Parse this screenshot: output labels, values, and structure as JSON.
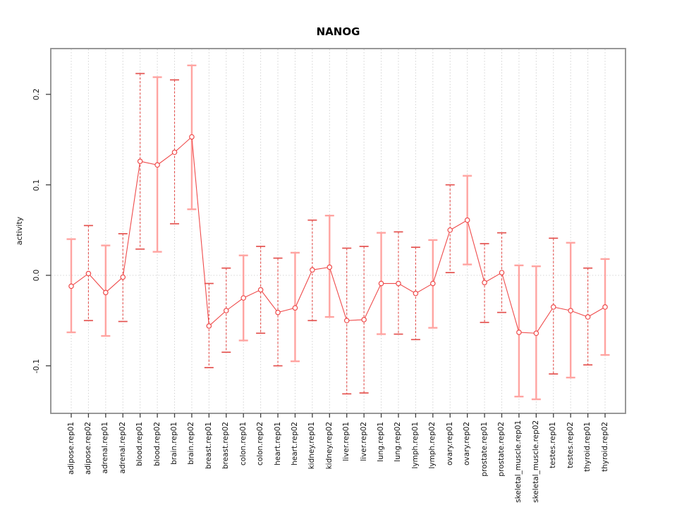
{
  "chart_data": {
    "type": "line",
    "title": "NANOG",
    "xlabel": "",
    "ylabel": "activity",
    "grid": "vertical-dotted-per-category",
    "zero_line": "dotted",
    "legend": "none",
    "ylim": [
      -0.153,
      0.251
    ],
    "yticks": [
      -0.1,
      0.0,
      0.1,
      0.2
    ],
    "ytick_labels": [
      "-0.1",
      "0.0",
      "0.1",
      "0.2"
    ],
    "point_marker": "open-circle",
    "categories": [
      "adipose.rep01",
      "adipose.rep02",
      "adrenal.rep01",
      "adrenal.rep02",
      "blood.rep01",
      "blood.rep02",
      "brain.rep01",
      "brain.rep02",
      "breast.rep01",
      "breast.rep02",
      "colon.rep01",
      "colon.rep02",
      "heart.rep01",
      "heart.rep02",
      "kidney.rep01",
      "kidney.rep02",
      "liver.rep01",
      "liver.rep02",
      "lung.rep01",
      "lung.rep02",
      "lymph.rep01",
      "lymph.rep02",
      "ovary.rep01",
      "ovary.rep02",
      "prostate.rep01",
      "prostate.rep02",
      "skeletal_muscle.rep01",
      "skeletal_muscle.rep02",
      "testes.rep01",
      "testes.rep02",
      "thyroid.rep01",
      "thyroid.rep02"
    ],
    "series": [
      {
        "name": "activity",
        "values": [
          -0.012,
          0.002,
          -0.019,
          -0.002,
          0.126,
          0.122,
          0.136,
          0.153,
          -0.056,
          -0.039,
          -0.025,
          -0.016,
          -0.041,
          -0.036,
          0.006,
          0.009,
          -0.05,
          -0.049,
          -0.009,
          -0.009,
          -0.02,
          -0.009,
          0.05,
          0.061,
          -0.008,
          0.003,
          -0.063,
          -0.064,
          -0.035,
          -0.039,
          -0.046,
          -0.035
        ],
        "upper": [
          0.04,
          0.055,
          0.033,
          0.046,
          0.223,
          0.219,
          0.216,
          0.232,
          -0.009,
          0.008,
          0.022,
          0.032,
          0.019,
          0.025,
          0.061,
          0.066,
          0.03,
          0.032,
          0.047,
          0.048,
          0.031,
          0.039,
          0.1,
          0.11,
          0.035,
          0.047,
          0.011,
          0.01,
          0.041,
          0.036,
          0.008,
          0.018
        ],
        "lower": [
          -0.063,
          -0.05,
          -0.067,
          -0.051,
          0.029,
          0.026,
          0.057,
          0.073,
          -0.102,
          -0.085,
          -0.072,
          -0.064,
          -0.1,
          -0.095,
          -0.05,
          -0.046,
          -0.131,
          -0.13,
          -0.065,
          -0.065,
          -0.071,
          -0.058,
          0.003,
          0.012,
          -0.052,
          -0.041,
          -0.134,
          -0.137,
          -0.109,
          -0.113,
          -0.099,
          -0.088
        ],
        "bar_styles": [
          "solid",
          "dashed",
          "solid",
          "dashed",
          "dashed",
          "solid",
          "dashed",
          "solid",
          "dashed",
          "dashed",
          "solid",
          "dashed",
          "dashed",
          "solid",
          "dashed",
          "solid",
          "dashed",
          "dashed",
          "solid",
          "dashed",
          "dashed",
          "solid",
          "dashed",
          "solid",
          "dashed",
          "dashed",
          "solid",
          "solid",
          "dashed",
          "solid",
          "dashed",
          "solid"
        ]
      }
    ],
    "colors": {
      "point": "#EF4B4B",
      "line": "#EF4B4B",
      "bar_dashed": "#E4524F",
      "bar_solid": "#FFA4A1",
      "grid": "#D2D2D2",
      "zero_line": "#D6D6D6",
      "box": "#8C8C8C",
      "tick": "#3F3F3F",
      "text": "#111111"
    }
  }
}
